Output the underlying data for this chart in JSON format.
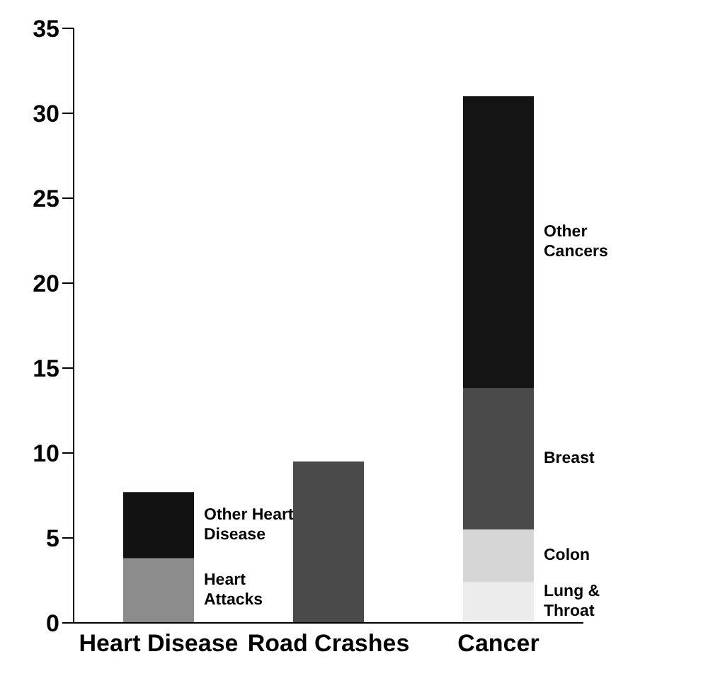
{
  "chart_data": {
    "type": "bar",
    "stacked": true,
    "categories": [
      "Heart Disease",
      "Road Crashes",
      "Cancer"
    ],
    "series": [
      {
        "name": "Heart Attacks",
        "color": "#8c8c8c",
        "values": [
          3.8,
          null,
          null
        ]
      },
      {
        "name": "Other Heart Disease",
        "color": "#121212",
        "values": [
          3.9,
          null,
          null
        ]
      },
      {
        "color": "#4a4a4a",
        "values": [
          null,
          9.5,
          null
        ]
      },
      {
        "name": "Lung & Throat",
        "color": "#ececec",
        "values": [
          null,
          null,
          2.4
        ]
      },
      {
        "name": "Colon",
        "color": "#d6d6d6",
        "values": [
          null,
          null,
          3.1
        ]
      },
      {
        "name": "Breast",
        "color": "#4a4a4a",
        "values": [
          null,
          null,
          8.3
        ]
      },
      {
        "name": "Other Cancers",
        "color": "#141414",
        "values": [
          null,
          null,
          17.2
        ]
      }
    ],
    "ylim": [
      0,
      35
    ],
    "yticks": [
      0,
      5,
      10,
      15,
      20,
      25,
      30,
      35
    ],
    "grid": false,
    "legend": false
  }
}
